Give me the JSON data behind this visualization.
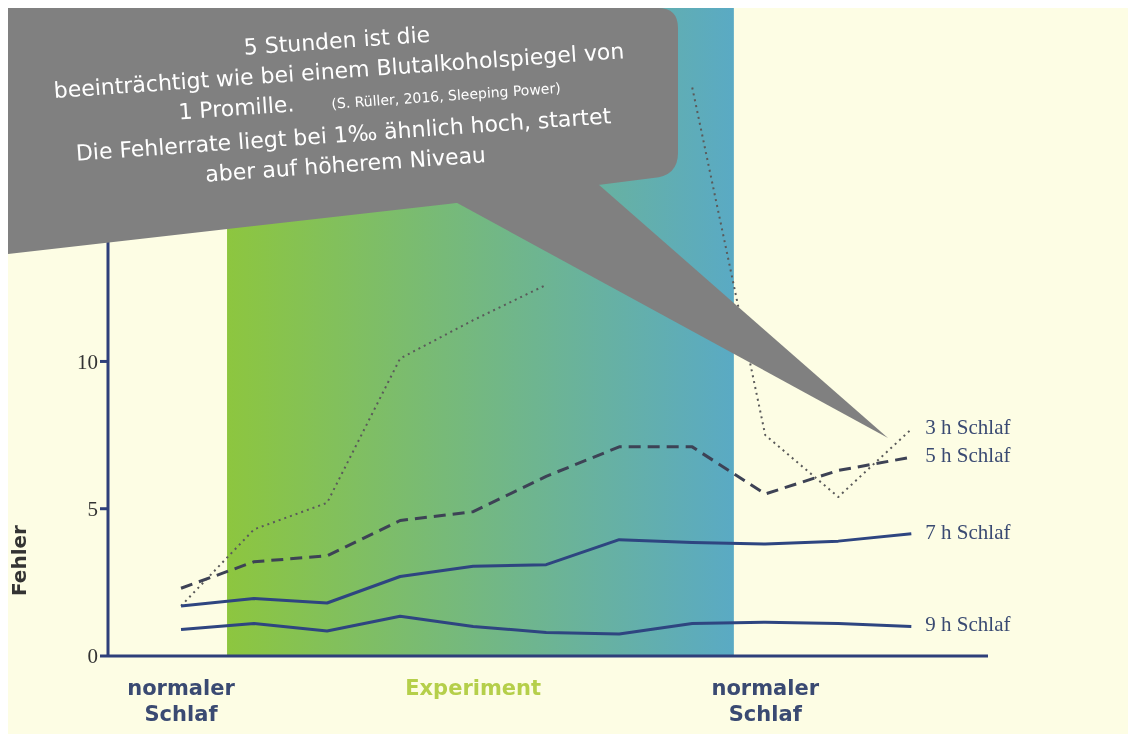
{
  "chart_data": {
    "type": "line",
    "ylabel": "Fehler",
    "categories": [
      "normaler Schlaf",
      null,
      null,
      null,
      "Experiment",
      null,
      null,
      null,
      "normaler Schlaf",
      null,
      null
    ],
    "series": [
      {
        "name": "3 h Schlaf",
        "color": "#5a5a5a",
        "line_style": "dotted",
        "values": [
          1.7,
          4.3,
          5.2,
          10.1,
          11.4,
          12.6,
          null,
          19.3,
          7.5,
          5.4,
          7.7
        ]
      },
      {
        "name": "5 h Schlaf",
        "color": "#3d4255",
        "line_style": "dashed",
        "values": [
          2.3,
          3.2,
          3.4,
          4.6,
          4.9,
          6.1,
          7.1,
          7.1,
          5.5,
          6.3,
          6.75
        ]
      },
      {
        "name": "7 h Schlaf",
        "color": "#2e4580",
        "line_style": "solid",
        "values": [
          1.7,
          1.95,
          1.8,
          2.7,
          3.05,
          3.1,
          3.95,
          3.85,
          3.8,
          3.9,
          4.15
        ]
      },
      {
        "name": "9 h Schlaf",
        "color": "#2e4580",
        "line_style": "solid",
        "values": [
          0.9,
          1.1,
          0.85,
          1.35,
          1.0,
          0.8,
          0.75,
          1.1,
          1.15,
          1.1,
          1.0
        ]
      }
    ],
    "ylim": [
      0,
      22
    ],
    "yticks": [
      0,
      5,
      10
    ],
    "marker": "none",
    "legend": false,
    "grid": false,
    "annotations": [
      "5 Stunden ist die",
      "beeinträchtigt wie bei einem Blutalkoholspiegel von",
      "1 Promille.",
      "(S. Rüller, 2016, Sleeping Power)",
      "Die Fehlerrate liegt bei 1‰ ähnlich hoch, startet",
      "aber auf höherem Niveau"
    ]
  }
}
